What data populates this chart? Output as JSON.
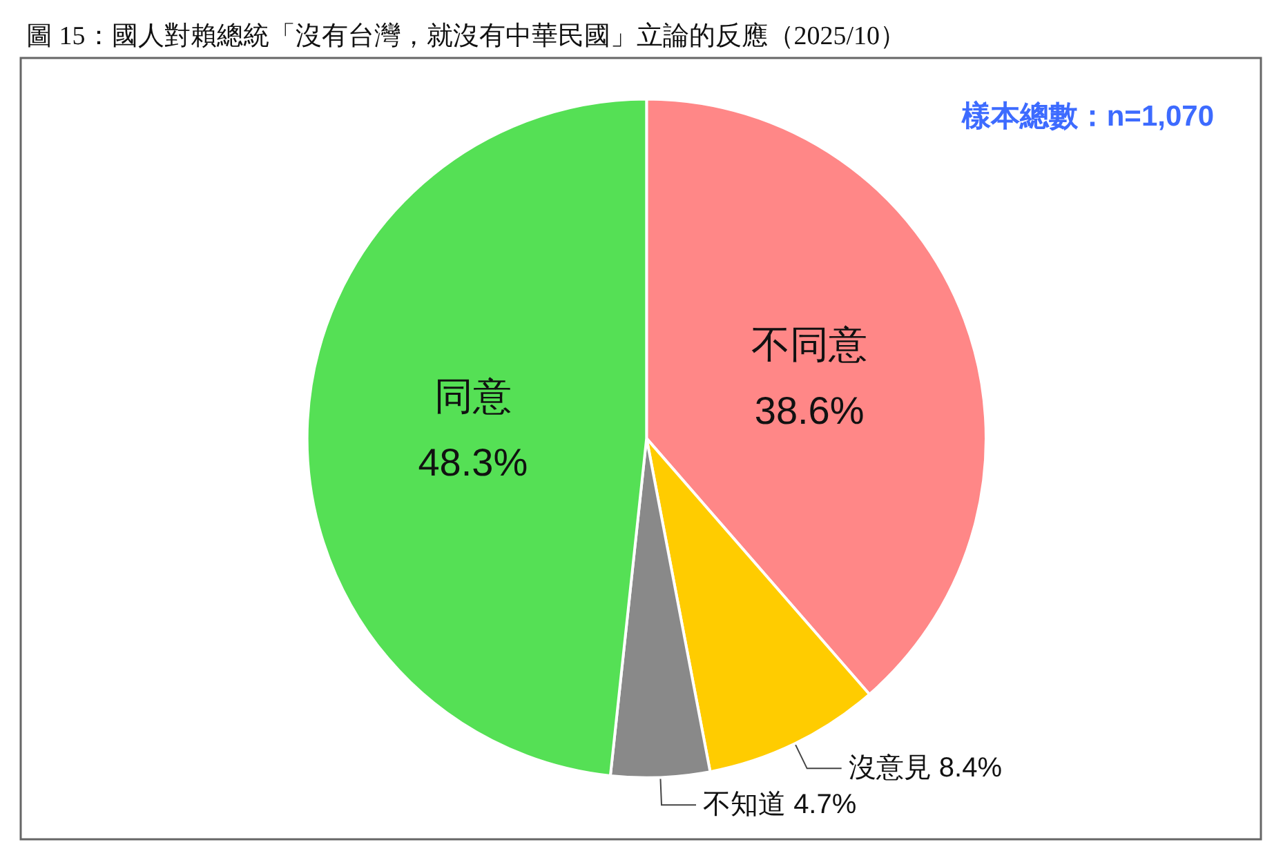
{
  "chart_data": {
    "type": "pie",
    "title": "圖 15：國人對賴總統「沒有台灣，就沒有中華民國」立論的反應（2025/10）",
    "categories": [
      "不同意",
      "沒意見",
      "不知道",
      "同意"
    ],
    "values": [
      38.6,
      8.4,
      4.7,
      48.3
    ],
    "colors": [
      "#ff8787",
      "#ffcc00",
      "#898989",
      "#55e055"
    ],
    "annotations": [
      "樣本總數：n=1,070"
    ],
    "value_labels": [
      "38.6%",
      "8.4%",
      "4.7%",
      "48.3%"
    ],
    "legend": false
  }
}
